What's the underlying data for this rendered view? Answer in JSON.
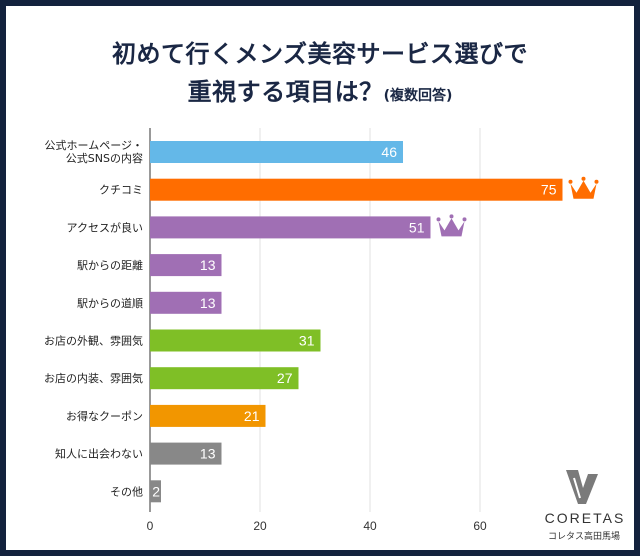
{
  "title_line1": "初めて行くメンズ美容サービス選びで",
  "title_line2": "重視する項目は？",
  "title_note": "(複数回答)",
  "brand": {
    "name": "CORETAS",
    "sub": "コレタス高田馬場"
  },
  "chart_data": {
    "type": "bar",
    "orientation": "horizontal",
    "title": "初めて行くメンズ美容サービス選びで重視する項目は？(複数回答)",
    "categories": [
      [
        "公式ホームページ・",
        "公式SNSの内容"
      ],
      [
        "クチコミ"
      ],
      [
        "アクセスが良い"
      ],
      [
        "駅からの距離"
      ],
      [
        "駅からの道順"
      ],
      [
        "お店の外観、雰囲気"
      ],
      [
        "お店の内装、雰囲気"
      ],
      [
        "お得なクーポン"
      ],
      [
        "知人に出会わない"
      ],
      [
        "その他"
      ]
    ],
    "values": [
      46,
      75,
      51,
      13,
      13,
      31,
      27,
      21,
      13,
      2
    ],
    "colors": [
      "#64b8e8",
      "#ff6d00",
      "#a06fb4",
      "#a06fb4",
      "#a06fb4",
      "#7fbf26",
      "#7fbf26",
      "#f29600",
      "#888888",
      "#888888"
    ],
    "crowns": [
      {
        "index": 1,
        "color": "#ff6d00"
      },
      {
        "index": 2,
        "color": "#a06fb4"
      }
    ],
    "xlim": [
      0,
      80
    ],
    "xticks": [
      0,
      20,
      40,
      60
    ],
    "grid": true
  }
}
